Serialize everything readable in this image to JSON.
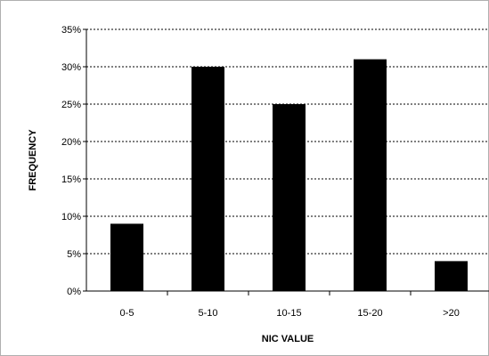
{
  "chart_data": {
    "type": "bar",
    "title": "",
    "xlabel": "NIC VALUE",
    "ylabel": "FREQUENCY",
    "categories": [
      "0-5",
      "5-10",
      "10-15",
      "15-20",
      ">20"
    ],
    "values": [
      9,
      30,
      25,
      31,
      4
    ],
    "ylim": [
      0,
      35
    ],
    "y_ticks": [
      0,
      5,
      10,
      15,
      20,
      25,
      30,
      35
    ],
    "y_tick_labels": [
      "0%",
      "5%",
      "10%",
      "15%",
      "20%",
      "25%",
      "30%",
      "35%"
    ],
    "y_unit": "percent",
    "grid": "horizontal dashed",
    "legend": "none",
    "bar_color": "#000000"
  }
}
